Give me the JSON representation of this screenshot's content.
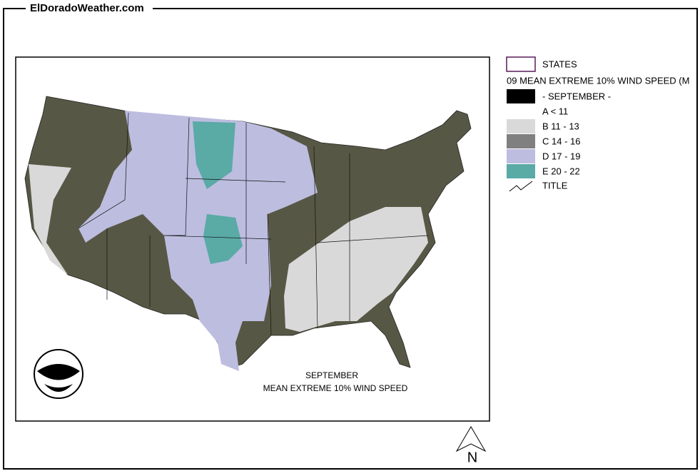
{
  "header": {
    "title": "ElDoradoWeather.com"
  },
  "map": {
    "caption_line1": "SEPTEMBER",
    "caption_line2": "MEAN EXTREME 10% WIND SPEED",
    "north_label": "N"
  },
  "legend": {
    "states_label": "STATES",
    "layer_title": "09 MEAN EXTREME 10% WIND SPEED (M",
    "month_label": "- SEPTEMBER -",
    "month_color": "#000000",
    "classes": [
      {
        "label": "A < 11",
        "color": "#ffffff"
      },
      {
        "label": "B 11 - 13",
        "color": "#d9d9d9"
      },
      {
        "label": "C 14 - 16",
        "color": "#808080"
      },
      {
        "label": "D 17 - 19",
        "color": "#bdbde0"
      },
      {
        "label": "E 20 - 22",
        "color": "#5aaaa6"
      }
    ],
    "title_label": "TITLE"
  }
}
